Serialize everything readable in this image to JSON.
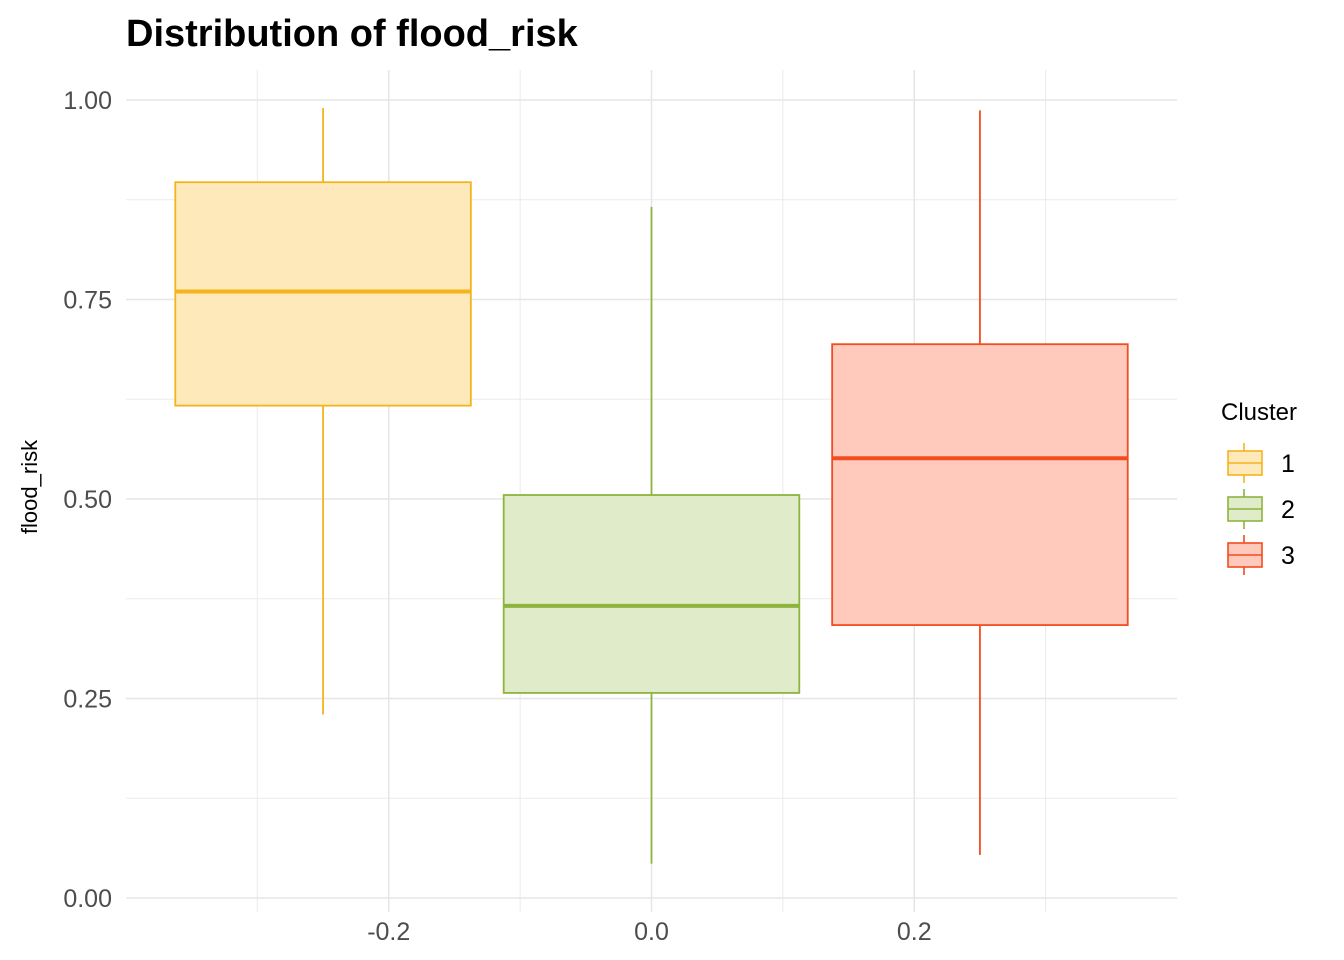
{
  "chart_data": {
    "type": "boxplot",
    "title": "Distribution of flood_risk",
    "xlabel": "",
    "ylabel": "flood_risk",
    "xlim": [
      -0.4,
      0.4
    ],
    "ylim": [
      0,
      1
    ],
    "x_ticks": [
      "-0.2",
      "0.0",
      "0.2"
    ],
    "y_ticks": [
      "0.00",
      "0.25",
      "0.50",
      "0.75",
      "1.00"
    ],
    "grid": true,
    "legend": {
      "title": "Cluster",
      "position": "right"
    },
    "series": [
      {
        "name": "1",
        "color": "#F5B41E",
        "fill": "#FEE9BA",
        "x_center": -0.25,
        "min": 0.23,
        "q1": 0.617,
        "median": 0.76,
        "q3": 0.897,
        "max": 0.99
      },
      {
        "name": "2",
        "color": "#8DB43E",
        "fill": "#E0ECC9",
        "x_center": 0.0,
        "min": 0.043,
        "q1": 0.257,
        "median": 0.366,
        "q3": 0.505,
        "max": 0.866
      },
      {
        "name": "3",
        "color": "#F24D1F",
        "fill": "#FFC9BB",
        "x_center": 0.25,
        "min": 0.054,
        "q1": 0.342,
        "median": 0.551,
        "q3": 0.694,
        "max": 0.987
      }
    ]
  }
}
